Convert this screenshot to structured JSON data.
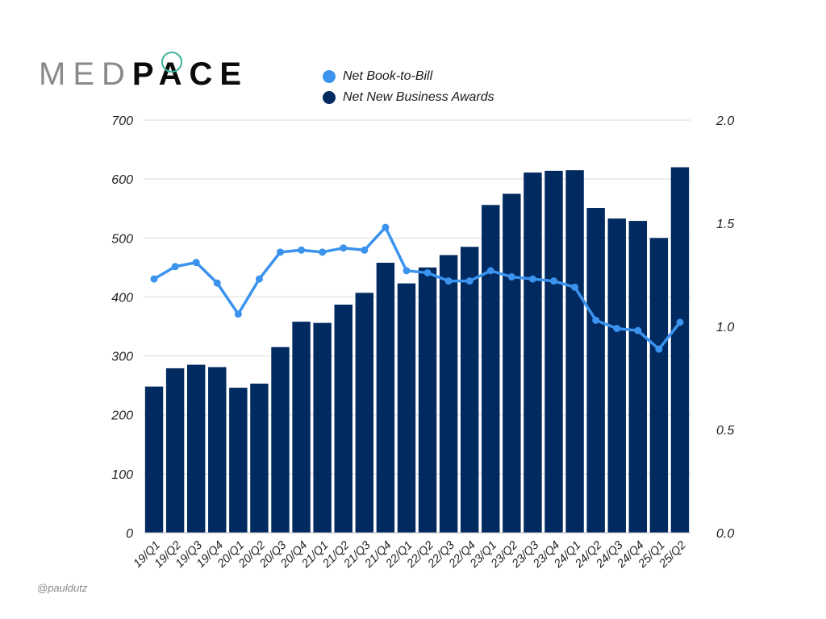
{
  "logo": {
    "part1": "MED",
    "part2": "PACE"
  },
  "credit": "@pauldutz",
  "colors": {
    "bar": "#002a60",
    "line": "#3b93ee",
    "grid": "#d9d9d9",
    "text": "#222222"
  },
  "chart_data": {
    "type": "bar",
    "title": "",
    "xlabel": "",
    "ylabel": "",
    "y2label": "",
    "categories": [
      "19/Q1",
      "19/Q2",
      "19/Q3",
      "19/Q4",
      "20/Q1",
      "20/Q2",
      "20/Q3",
      "20/Q4",
      "21/Q1",
      "21/Q2",
      "21/Q3",
      "21/Q4",
      "22/Q1",
      "22/Q2",
      "22/Q3",
      "22/Q4",
      "23/Q1",
      "23/Q2",
      "23/Q3",
      "23/Q4",
      "24/Q1",
      "24/Q2",
      "24/Q3",
      "24/Q4",
      "25/Q1",
      "25/Q2"
    ],
    "ylim": [
      0,
      700
    ],
    "y_ticks": [
      "0",
      "100",
      "200",
      "300",
      "400",
      "500",
      "600",
      "700"
    ],
    "y2lim": [
      0,
      2.0
    ],
    "y2_ticks": [
      "0.0",
      "0.5",
      "1.0",
      "1.5",
      "2.0"
    ],
    "grid": true,
    "legend_position": "top",
    "series": [
      {
        "name": "Net New Business Awards",
        "type": "bar",
        "axis": "left",
        "values": [
          248,
          279,
          285,
          281,
          246,
          253,
          315,
          358,
          356,
          387,
          407,
          458,
          423,
          450,
          471,
          485,
          556,
          575,
          611,
          614,
          615,
          551,
          533,
          529,
          500,
          620
        ]
      },
      {
        "name": "Net Book-to-Bill",
        "type": "line",
        "axis": "right",
        "values": [
          1.23,
          1.29,
          1.31,
          1.21,
          1.06,
          1.23,
          1.36,
          1.37,
          1.36,
          1.38,
          1.37,
          1.48,
          1.27,
          1.26,
          1.22,
          1.22,
          1.27,
          1.24,
          1.23,
          1.22,
          1.19,
          1.03,
          0.99,
          0.98,
          0.89,
          1.02
        ]
      }
    ]
  }
}
